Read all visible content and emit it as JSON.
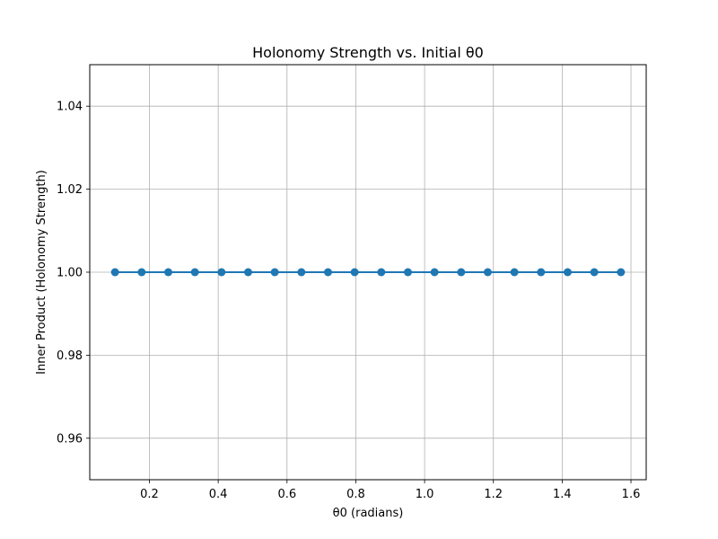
{
  "chart_data": {
    "type": "line",
    "title": "Holonomy Strength vs. Initial θ0",
    "xlabel": "θ0 (radians)",
    "ylabel": "Inner Product (Holonomy Strength)",
    "xlim": [
      0.0265,
      1.6443
    ],
    "ylim": [
      0.95,
      1.05
    ],
    "x_ticks": [
      0.2,
      0.4,
      0.6,
      0.8,
      1.0,
      1.2,
      1.4,
      1.6
    ],
    "x_tick_labels": [
      "0.2",
      "0.4",
      "0.6",
      "0.8",
      "1.0",
      "1.2",
      "1.4",
      "1.6"
    ],
    "y_ticks": [
      0.96,
      0.98,
      1.0,
      1.02,
      1.04
    ],
    "y_tick_labels": [
      "0.96",
      "0.98",
      "1.00",
      "1.02",
      "1.04"
    ],
    "grid": true,
    "legend": "none",
    "series": [
      {
        "color": "#1f77b4",
        "marker": "circle",
        "x": [
          0.1,
          0.1774,
          0.2548,
          0.3322,
          0.4096,
          0.487,
          0.5644,
          0.6418,
          0.7192,
          0.7966,
          0.8741,
          0.9515,
          1.0289,
          1.1063,
          1.1837,
          1.2611,
          1.3385,
          1.4159,
          1.4933,
          1.5708
        ],
        "y": [
          1.0,
          1.0,
          1.0,
          1.0,
          1.0,
          1.0,
          1.0,
          1.0,
          1.0,
          1.0,
          1.0,
          1.0,
          1.0,
          1.0,
          1.0,
          1.0,
          1.0,
          1.0,
          1.0,
          1.0
        ]
      }
    ]
  }
}
